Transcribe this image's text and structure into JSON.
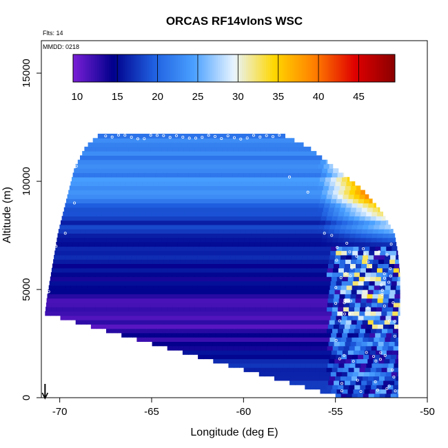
{
  "chart_data": {
    "type": "heatmap",
    "title": "ORCAS RF14vlonS WSC",
    "annotations": {
      "flights": "Flts: 14",
      "date": "MMDD: 0218"
    },
    "xlabel": "Longitude (deg E)",
    "ylabel": "Altitude (m)",
    "xlim": [
      -71,
      -50
    ],
    "ylim": [
      0,
      16500
    ],
    "x_ticks": [
      -70,
      -65,
      -60,
      -55,
      -50
    ],
    "x_tick_labels": [
      "-70",
      "-65",
      "-60",
      "-55",
      "-50"
    ],
    "y_ticks": [
      0,
      5000,
      10000,
      15000
    ],
    "y_tick_labels": [
      "0",
      "5000",
      "10000",
      "15000"
    ],
    "colorbar": {
      "range": [
        9.5,
        49.5
      ],
      "ticks": [
        10,
        15,
        20,
        25,
        30,
        35,
        40,
        45
      ],
      "tick_labels": [
        "10",
        "15",
        "20",
        "25",
        "30",
        "35",
        "40",
        "45"
      ],
      "colors": [
        "#7a1fd6",
        "#00008b",
        "#1f5fe0",
        "#4aa0ff",
        "#e8f4ff",
        "#ffd700",
        "#ff7f00",
        "#e00000",
        "#8b0000"
      ]
    },
    "grid": false,
    "legend": "colorbar at top",
    "marker_longitude": -70.8,
    "profile": {
      "altitude_levels_m": [
        3800,
        4500,
        5500,
        6500,
        7500,
        8500,
        9500,
        10500,
        11500,
        12100
      ],
      "west_edge_longitude": [
        -70.8,
        -70.7,
        -70.5,
        -70.3,
        -70.1,
        -69.8,
        -69.5,
        -69.2,
        -68.6,
        -67.8
      ],
      "east_edge_longitude": [
        -51.5,
        -51.5,
        -51.5,
        -51.6,
        -51.8,
        -52.5,
        -53.5,
        -55.0,
        -56.5,
        -58.0
      ],
      "typical_wsc": [
        11,
        13,
        15,
        16,
        16,
        19,
        24,
        22,
        23,
        22
      ]
    }
  }
}
